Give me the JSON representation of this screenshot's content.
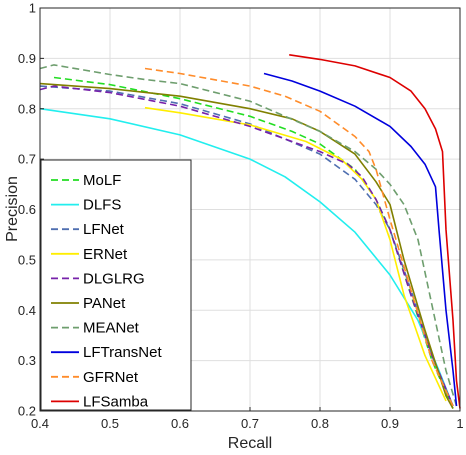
{
  "chart_data": {
    "type": "line",
    "xlabel": "Recall",
    "ylabel": "Precision",
    "xlim": [
      0.4,
      1.0
    ],
    "ylim": [
      0.2,
      1.0
    ],
    "xticks": [
      0.4,
      0.5,
      0.6,
      0.7,
      0.8,
      0.9,
      1.0
    ],
    "yticks": [
      0.2,
      0.3,
      0.4,
      0.5,
      0.6,
      0.7,
      0.8,
      0.9,
      1.0
    ],
    "xtick_labels": [
      "0.4",
      "0.5",
      "0.6",
      "0.7",
      "0.8",
      "0.9",
      "1"
    ],
    "ytick_labels": [
      "0.2",
      "0.3",
      "0.4",
      "0.5",
      "0.6",
      "0.7",
      "0.8",
      "0.9",
      "1"
    ],
    "grid": true,
    "legend_position": "bottom-left",
    "series": [
      {
        "name": "MoLF",
        "color": "#22dd22",
        "dash": "dashed",
        "points": [
          [
            0.42,
            0.862
          ],
          [
            0.5,
            0.848
          ],
          [
            0.6,
            0.82
          ],
          [
            0.7,
            0.785
          ],
          [
            0.76,
            0.755
          ],
          [
            0.8,
            0.73
          ],
          [
            0.85,
            0.68
          ],
          [
            0.88,
            0.62
          ],
          [
            0.9,
            0.56
          ],
          [
            0.93,
            0.43
          ],
          [
            0.96,
            0.3
          ],
          [
            0.99,
            0.205
          ]
        ]
      },
      {
        "name": "DLFS",
        "color": "#22eeee",
        "dash": "solid",
        "points": [
          [
            0.4,
            0.8
          ],
          [
            0.5,
            0.78
          ],
          [
            0.6,
            0.748
          ],
          [
            0.7,
            0.7
          ],
          [
            0.75,
            0.665
          ],
          [
            0.8,
            0.615
          ],
          [
            0.85,
            0.555
          ],
          [
            0.9,
            0.47
          ],
          [
            0.94,
            0.38
          ],
          [
            0.97,
            0.28
          ],
          [
            0.99,
            0.21
          ]
        ]
      },
      {
        "name": "LFNet",
        "color": "#4f6fb0",
        "dash": "dashed",
        "points": [
          [
            0.4,
            0.845
          ],
          [
            0.5,
            0.835
          ],
          [
            0.6,
            0.81
          ],
          [
            0.7,
            0.77
          ],
          [
            0.8,
            0.71
          ],
          [
            0.85,
            0.66
          ],
          [
            0.88,
            0.61
          ],
          [
            0.9,
            0.56
          ],
          [
            0.93,
            0.44
          ],
          [
            0.96,
            0.31
          ],
          [
            0.99,
            0.21
          ]
        ]
      },
      {
        "name": "ERNet",
        "color": "#ffee00",
        "dash": "solid",
        "points": [
          [
            0.55,
            0.802
          ],
          [
            0.6,
            0.792
          ],
          [
            0.7,
            0.768
          ],
          [
            0.78,
            0.735
          ],
          [
            0.83,
            0.7
          ],
          [
            0.86,
            0.66
          ],
          [
            0.88,
            0.62
          ],
          [
            0.9,
            0.54
          ],
          [
            0.92,
            0.43
          ],
          [
            0.95,
            0.31
          ],
          [
            0.98,
            0.22
          ]
        ]
      },
      {
        "name": "DLGLRG",
        "color": "#7722aa",
        "dash": "dashed",
        "points": [
          [
            0.4,
            0.838
          ],
          [
            0.42,
            0.845
          ],
          [
            0.5,
            0.832
          ],
          [
            0.6,
            0.805
          ],
          [
            0.7,
            0.765
          ],
          [
            0.8,
            0.715
          ],
          [
            0.84,
            0.69
          ],
          [
            0.86,
            0.665
          ],
          [
            0.88,
            0.62
          ],
          [
            0.9,
            0.56
          ],
          [
            0.93,
            0.43
          ],
          [
            0.96,
            0.31
          ],
          [
            0.99,
            0.21
          ]
        ]
      },
      {
        "name": "PANet",
        "color": "#808000",
        "dash": "solid",
        "points": [
          [
            0.4,
            0.85
          ],
          [
            0.5,
            0.84
          ],
          [
            0.6,
            0.825
          ],
          [
            0.7,
            0.8
          ],
          [
            0.76,
            0.78
          ],
          [
            0.8,
            0.755
          ],
          [
            0.85,
            0.71
          ],
          [
            0.88,
            0.655
          ],
          [
            0.9,
            0.61
          ],
          [
            0.92,
            0.5
          ],
          [
            0.95,
            0.36
          ],
          [
            0.98,
            0.23
          ],
          [
            0.99,
            0.205
          ]
        ]
      },
      {
        "name": "MEANet",
        "color": "#6e9e6e",
        "dash": "dashed",
        "points": [
          [
            0.4,
            0.88
          ],
          [
            0.42,
            0.887
          ],
          [
            0.5,
            0.868
          ],
          [
            0.55,
            0.858
          ],
          [
            0.6,
            0.85
          ],
          [
            0.7,
            0.815
          ],
          [
            0.8,
            0.755
          ],
          [
            0.85,
            0.715
          ],
          [
            0.88,
            0.68
          ],
          [
            0.9,
            0.65
          ],
          [
            0.92,
            0.61
          ],
          [
            0.94,
            0.54
          ],
          [
            0.96,
            0.41
          ],
          [
            0.98,
            0.28
          ],
          [
            0.995,
            0.21
          ]
        ]
      },
      {
        "name": "LFTransNet",
        "color": "#0000dd",
        "dash": "solid",
        "points": [
          [
            0.72,
            0.87
          ],
          [
            0.76,
            0.855
          ],
          [
            0.8,
            0.835
          ],
          [
            0.85,
            0.805
          ],
          [
            0.9,
            0.765
          ],
          [
            0.93,
            0.725
          ],
          [
            0.95,
            0.69
          ],
          [
            0.965,
            0.645
          ],
          [
            0.97,
            0.56
          ],
          [
            0.98,
            0.4
          ],
          [
            0.99,
            0.28
          ],
          [
            0.995,
            0.21
          ]
        ]
      },
      {
        "name": "GFRNet",
        "color": "#ff8c2a",
        "dash": "dashed",
        "points": [
          [
            0.55,
            0.88
          ],
          [
            0.6,
            0.87
          ],
          [
            0.7,
            0.845
          ],
          [
            0.75,
            0.825
          ],
          [
            0.8,
            0.795
          ],
          [
            0.85,
            0.745
          ],
          [
            0.87,
            0.715
          ],
          [
            0.88,
            0.68
          ],
          [
            0.9,
            0.58
          ],
          [
            0.93,
            0.44
          ],
          [
            0.96,
            0.3
          ],
          [
            0.99,
            0.21
          ]
        ]
      },
      {
        "name": "LFSamba",
        "color": "#dd0000",
        "dash": "solid",
        "points": [
          [
            0.756,
            0.907
          ],
          [
            0.8,
            0.898
          ],
          [
            0.85,
            0.885
          ],
          [
            0.9,
            0.862
          ],
          [
            0.93,
            0.835
          ],
          [
            0.95,
            0.8
          ],
          [
            0.965,
            0.76
          ],
          [
            0.975,
            0.715
          ],
          [
            0.98,
            0.56
          ],
          [
            0.99,
            0.38
          ],
          [
            0.995,
            0.26
          ],
          [
            1.0,
            0.205
          ]
        ]
      }
    ]
  }
}
